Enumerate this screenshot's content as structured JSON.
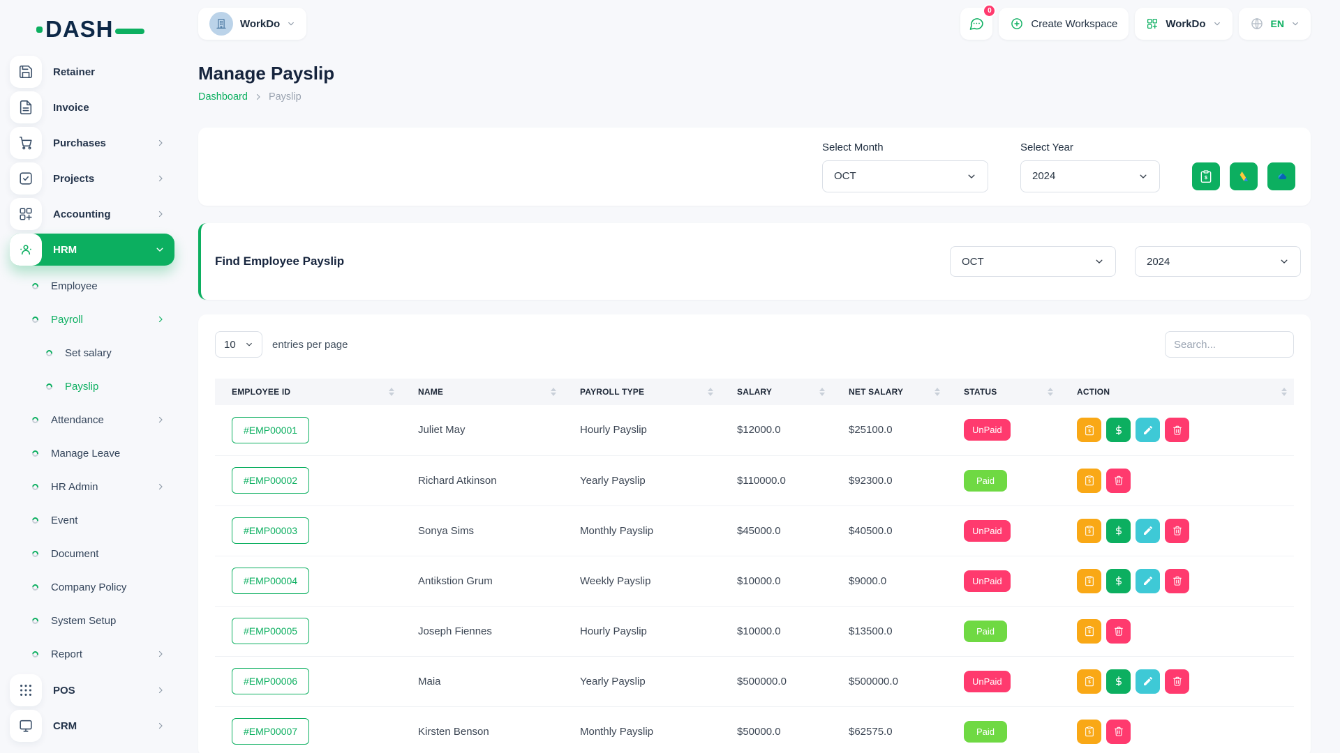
{
  "brand": {
    "name": "DASH"
  },
  "topbar": {
    "workspace": {
      "label": "WorkDo"
    },
    "chat_badge": "0",
    "create_workspace_label": "Create Workspace",
    "workdo_label": "WorkDo",
    "language": "EN"
  },
  "sidebar": {
    "items": [
      {
        "type": "main",
        "label": "Retainer",
        "icon": "save-icon"
      },
      {
        "type": "main",
        "label": "Invoice",
        "icon": "invoice-icon"
      },
      {
        "type": "main",
        "label": "Purchases",
        "icon": "cart-icon",
        "chevron": "right"
      },
      {
        "type": "main",
        "label": "Projects",
        "icon": "check-square-icon",
        "chevron": "right"
      },
      {
        "type": "main",
        "label": "Accounting",
        "icon": "grid-plus-icon",
        "chevron": "right"
      },
      {
        "type": "main",
        "label": "HRM",
        "icon": "hrm-users-icon",
        "chevron": "down",
        "active": true
      },
      {
        "type": "sub",
        "label": "Employee"
      },
      {
        "type": "sub",
        "label": "Payroll",
        "chevron": "right",
        "active": true
      },
      {
        "type": "subsub",
        "label": "Set salary"
      },
      {
        "type": "subsub",
        "label": "Payslip",
        "active": true
      },
      {
        "type": "sub",
        "label": "Attendance",
        "chevron": "right"
      },
      {
        "type": "sub",
        "label": "Manage Leave"
      },
      {
        "type": "sub",
        "label": "HR Admin",
        "chevron": "right"
      },
      {
        "type": "sub",
        "label": "Event"
      },
      {
        "type": "sub",
        "label": "Document"
      },
      {
        "type": "sub",
        "label": "Company Policy"
      },
      {
        "type": "sub",
        "label": "System Setup"
      },
      {
        "type": "sub",
        "label": "Report",
        "chevron": "right"
      },
      {
        "type": "main",
        "label": "POS",
        "icon": "pos-grid-icon",
        "chevron": "right"
      },
      {
        "type": "main",
        "label": "CRM",
        "icon": "crm-icon",
        "chevron": "right"
      }
    ]
  },
  "page": {
    "title": "Manage Payslip",
    "breadcrumb": {
      "home": "Dashboard",
      "current": "Payslip"
    }
  },
  "filter_card": {
    "month_label": "Select Month",
    "month_value": "OCT",
    "year_label": "Select Year",
    "year_value": "2024",
    "tools": [
      {
        "name": "export-payslip-button",
        "icon": "clipboard-dollar-icon"
      },
      {
        "name": "google-drive-button",
        "icon": "google-drive-icon"
      },
      {
        "name": "onedrive-button",
        "icon": "onedrive-icon"
      }
    ]
  },
  "find_card": {
    "title": "Find Employee Payslip",
    "month_value": "OCT",
    "year_value": "2024"
  },
  "table": {
    "entries_value": "10",
    "entries_label": "entries per page",
    "search_placeholder": "Search...",
    "columns": [
      "EMPLOYEE ID",
      "NAME",
      "PAYROLL TYPE",
      "SALARY",
      "NET SALARY",
      "STATUS",
      "ACTION"
    ],
    "rows": [
      {
        "id": "#EMP00001",
        "name": "Juliet May",
        "payroll_type": "Hourly Payslip",
        "salary": "$12000.0",
        "net_salary": "$25100.0",
        "status": "UnPaid",
        "actions": [
          "payslip",
          "pay",
          "edit",
          "delete"
        ]
      },
      {
        "id": "#EMP00002",
        "name": "Richard Atkinson",
        "payroll_type": "Yearly Payslip",
        "salary": "$110000.0",
        "net_salary": "$92300.0",
        "status": "Paid",
        "actions": [
          "payslip",
          "delete"
        ]
      },
      {
        "id": "#EMP00003",
        "name": "Sonya Sims",
        "payroll_type": "Monthly Payslip",
        "salary": "$45000.0",
        "net_salary": "$40500.0",
        "status": "UnPaid",
        "actions": [
          "payslip",
          "pay",
          "edit",
          "delete"
        ]
      },
      {
        "id": "#EMP00004",
        "name": "Antikstion Grum",
        "payroll_type": "Weekly Payslip",
        "salary": "$10000.0",
        "net_salary": "$9000.0",
        "status": "UnPaid",
        "actions": [
          "payslip",
          "pay",
          "edit",
          "delete"
        ]
      },
      {
        "id": "#EMP00005",
        "name": "Joseph Fiennes",
        "payroll_type": "Hourly Payslip",
        "salary": "$10000.0",
        "net_salary": "$13500.0",
        "status": "Paid",
        "actions": [
          "payslip",
          "delete"
        ]
      },
      {
        "id": "#EMP00006",
        "name": "Maia",
        "payroll_type": "Yearly Payslip",
        "salary": "$500000.0",
        "net_salary": "$500000.0",
        "status": "UnPaid",
        "actions": [
          "payslip",
          "pay",
          "edit",
          "delete"
        ]
      },
      {
        "id": "#EMP00007",
        "name": "Kirsten Benson",
        "payroll_type": "Monthly Payslip",
        "salary": "$50000.0",
        "net_salary": "$62575.0",
        "status": "Paid",
        "actions": [
          "payslip",
          "delete"
        ]
      }
    ]
  },
  "colors": {
    "accent": "#0CAF60",
    "paid": "#6FD943",
    "unpaid": "#FF3A6E",
    "warning": "#F9A816",
    "info": "#3EC9D6"
  }
}
